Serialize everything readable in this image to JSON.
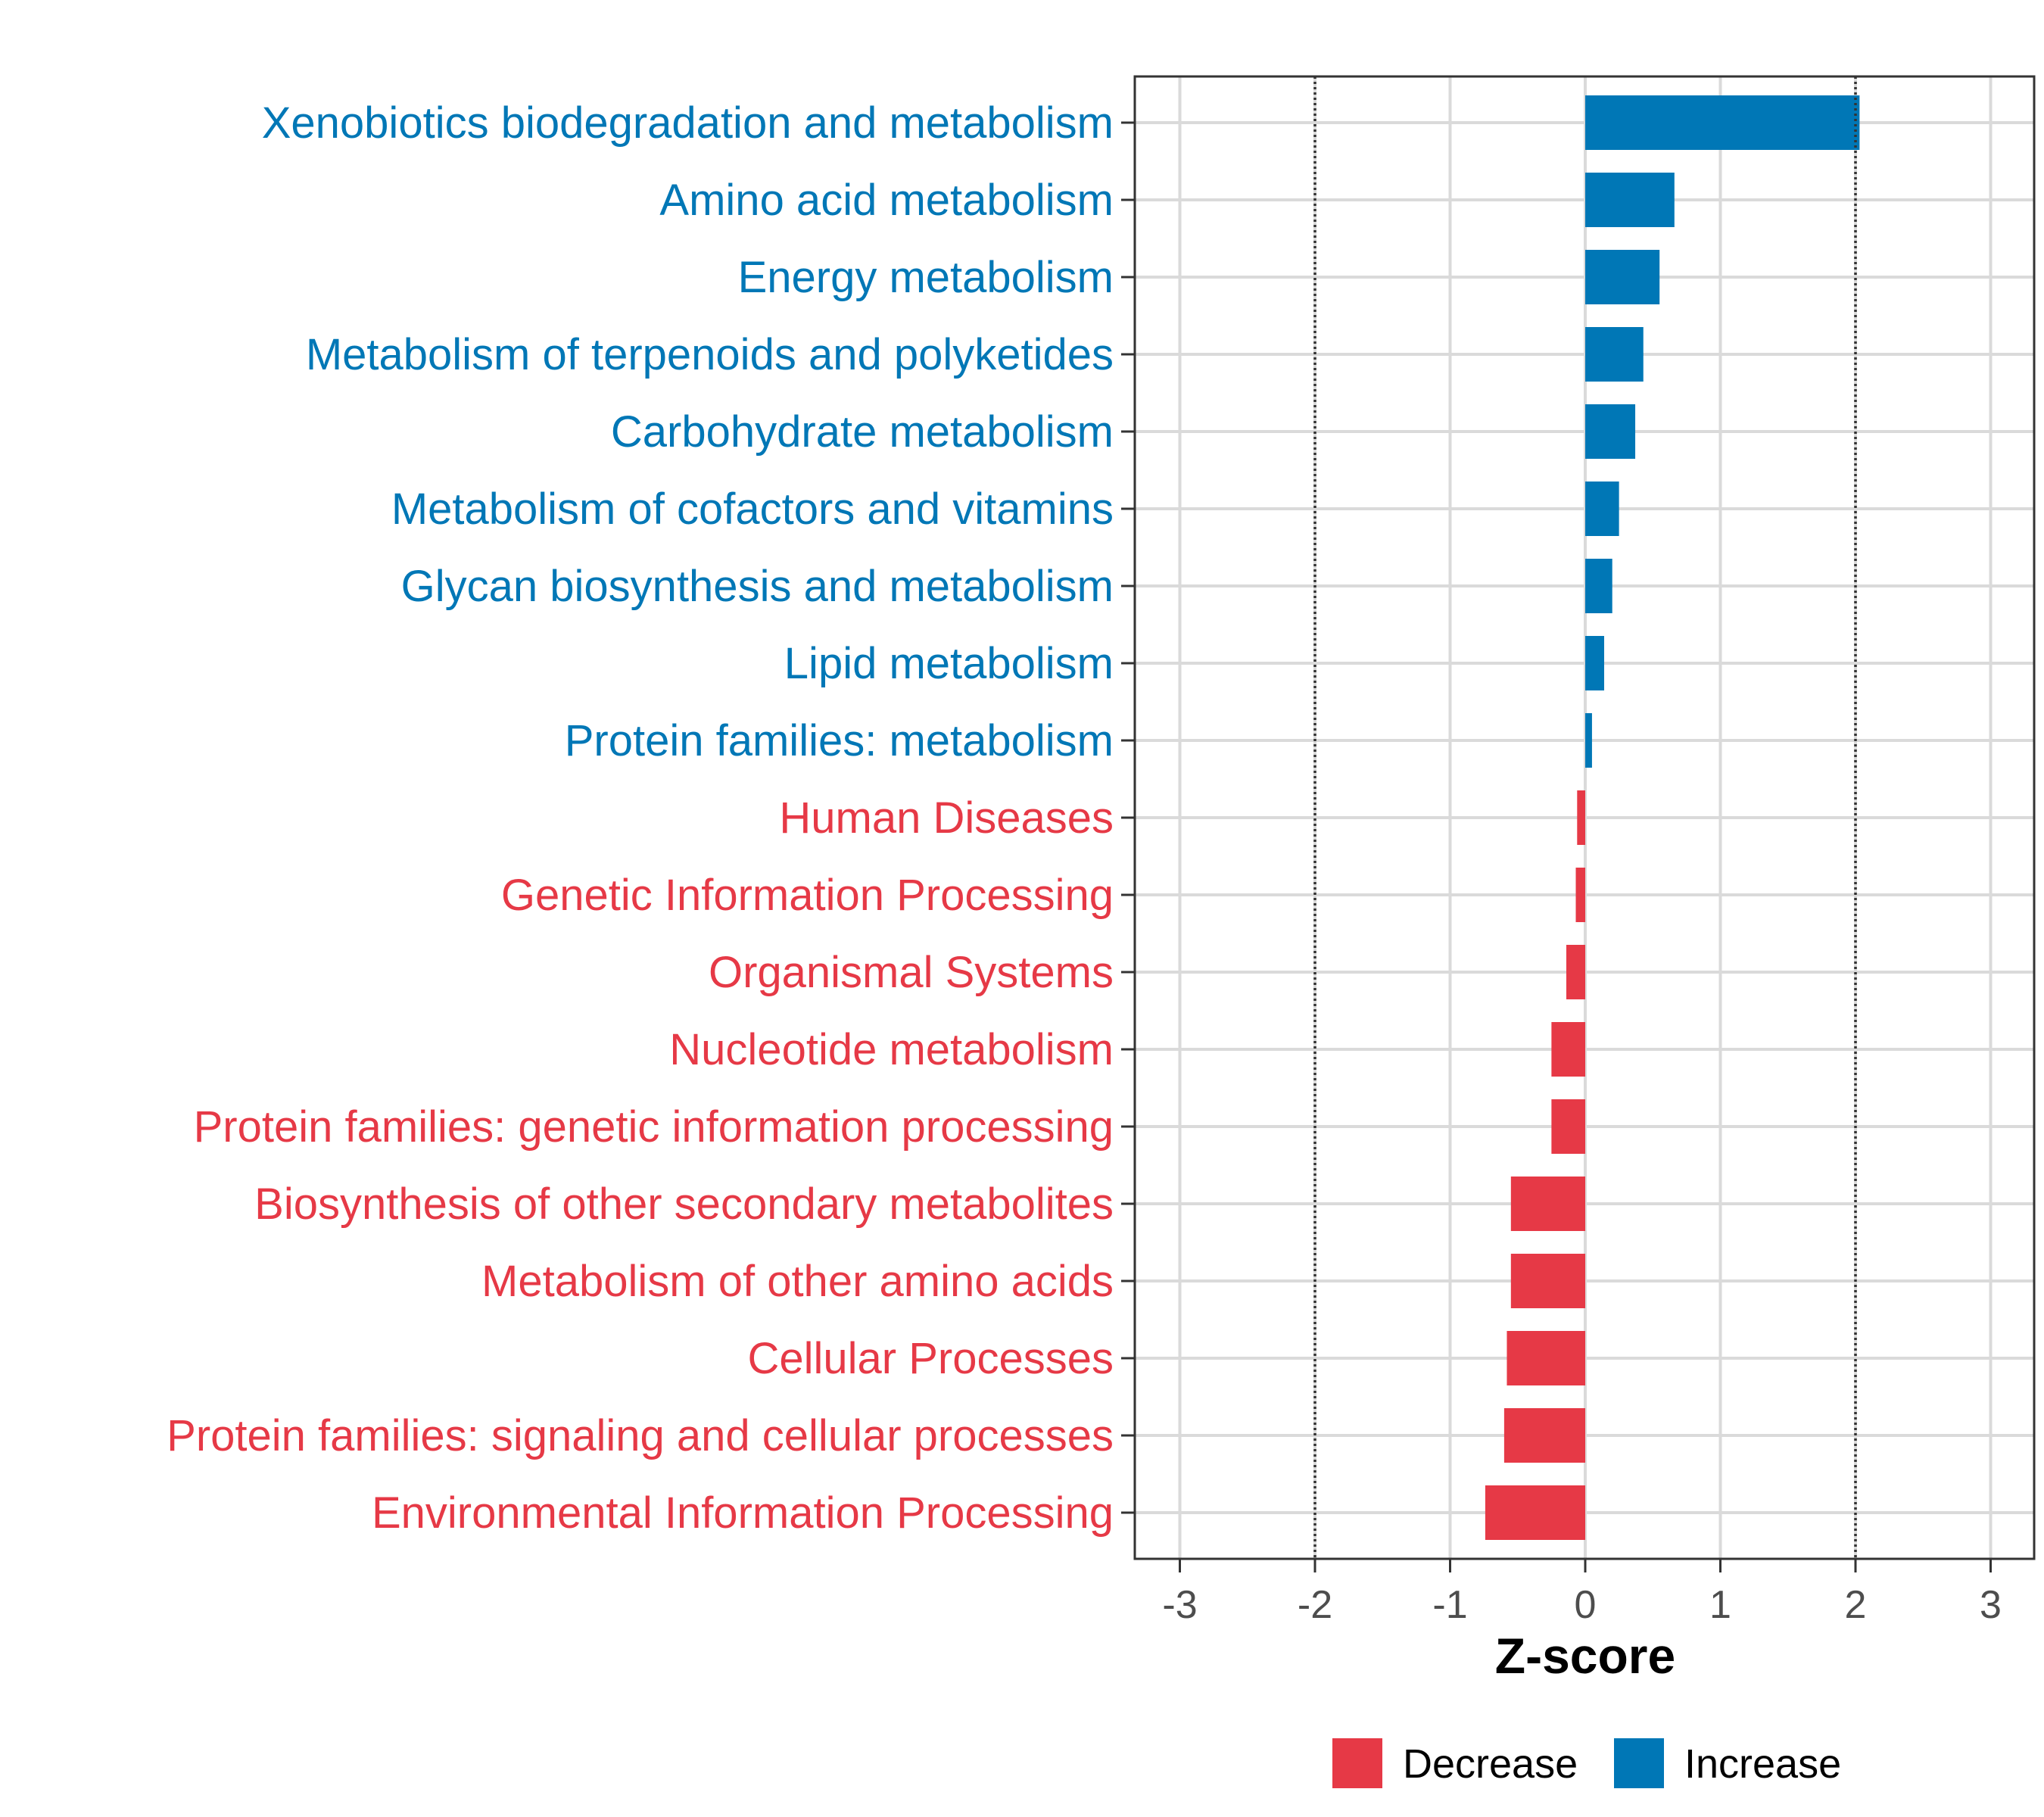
{
  "chart_data": {
    "type": "bar",
    "orientation": "horizontal",
    "title": "",
    "xlabel": "Z-score",
    "ylabel": "",
    "xlim": [
      -3.3,
      3.3
    ],
    "xticks": [
      -3,
      -2,
      -1,
      0,
      1,
      2,
      3
    ],
    "xtick_labels": [
      "-3",
      "-2",
      "-1",
      "0",
      "1",
      "2",
      "3"
    ],
    "reference_lines": [
      -2,
      2
    ],
    "grid": true,
    "legend_position": "bottom",
    "colors": {
      "Decrease": "#E63946",
      "Increase": "#0077B6"
    },
    "categories": [
      "Xenobiotics biodegradation and metabolism",
      "Amino acid metabolism",
      "Energy metabolism",
      "Metabolism of terpenoids and polyketides",
      "Carbohydrate metabolism",
      "Metabolism of cofactors and vitamins",
      "Glycan biosynthesis and metabolism",
      "Lipid metabolism",
      "Protein families: metabolism",
      "Human Diseases",
      "Genetic Information Processing",
      "Organismal Systems",
      "Nucleotide metabolism",
      "Protein families: genetic information processing",
      "Biosynthesis of other secondary metabolites",
      "Metabolism of other amino acids",
      "Cellular Processes",
      "Protein families: signaling and cellular processes",
      "Environmental Information Processing"
    ],
    "values": [
      2.03,
      0.66,
      0.55,
      0.43,
      0.37,
      0.25,
      0.2,
      0.14,
      0.05,
      -0.06,
      -0.07,
      -0.14,
      -0.25,
      -0.25,
      -0.55,
      -0.55,
      -0.58,
      -0.6,
      -0.74
    ],
    "groups": [
      "Increase",
      "Increase",
      "Increase",
      "Increase",
      "Increase",
      "Increase",
      "Increase",
      "Increase",
      "Increase",
      "Decrease",
      "Decrease",
      "Decrease",
      "Decrease",
      "Decrease",
      "Decrease",
      "Decrease",
      "Decrease",
      "Decrease",
      "Decrease"
    ],
    "legend": [
      "Decrease",
      "Increase"
    ]
  }
}
